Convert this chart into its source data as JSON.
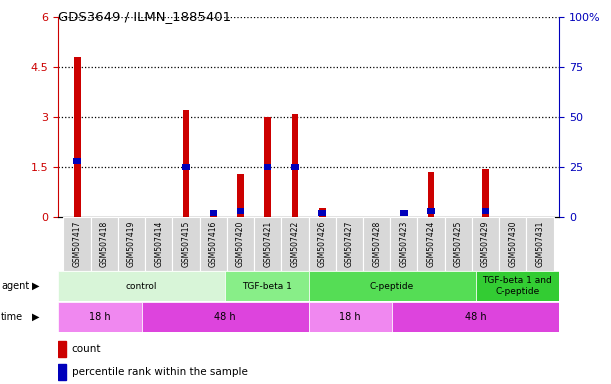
{
  "title": "GDS3649 / ILMN_1885401",
  "samples": [
    "GSM507417",
    "GSM507418",
    "GSM507419",
    "GSM507414",
    "GSM507415",
    "GSM507416",
    "GSM507420",
    "GSM507421",
    "GSM507422",
    "GSM507426",
    "GSM507427",
    "GSM507428",
    "GSM507423",
    "GSM507424",
    "GSM507425",
    "GSM507429",
    "GSM507430",
    "GSM507431"
  ],
  "count_values": [
    4.8,
    0.0,
    0.0,
    0.0,
    3.2,
    0.07,
    1.3,
    3.0,
    3.1,
    0.27,
    0.0,
    0.0,
    0.0,
    1.35,
    0.0,
    1.45,
    0.0,
    0.0
  ],
  "percentile_values_pct": [
    28,
    0,
    0,
    0,
    25,
    2,
    3,
    25,
    25,
    2,
    0,
    0,
    2,
    3,
    0,
    3,
    0,
    0
  ],
  "count_color": "#cc0000",
  "percentile_color": "#0000bb",
  "ylim_left": [
    0,
    6
  ],
  "ylim_right": [
    0,
    100
  ],
  "yticks_left": [
    0,
    1.5,
    3.0,
    4.5,
    6.0
  ],
  "yticks_right": [
    0,
    25,
    50,
    75,
    100
  ],
  "ytick_labels_left": [
    "0",
    "1.5",
    "3",
    "4.5",
    "6"
  ],
  "ytick_labels_right": [
    "0",
    "25",
    "50",
    "75",
    "100%"
  ],
  "agent_groups": [
    {
      "label": "control",
      "start": 0,
      "end": 6,
      "color": "#d8f5d8"
    },
    {
      "label": "TGF-beta 1",
      "start": 6,
      "end": 9,
      "color": "#88ee88"
    },
    {
      "label": "C-peptide",
      "start": 9,
      "end": 15,
      "color": "#55dd55"
    },
    {
      "label": "TGF-beta 1 and\nC-peptide",
      "start": 15,
      "end": 18,
      "color": "#33cc33"
    }
  ],
  "time_groups": [
    {
      "label": "18 h",
      "start": 0,
      "end": 3,
      "color": "#f088f0"
    },
    {
      "label": "48 h",
      "start": 3,
      "end": 9,
      "color": "#dd44dd"
    },
    {
      "label": "18 h",
      "start": 9,
      "end": 12,
      "color": "#f088f0"
    },
    {
      "label": "48 h",
      "start": 12,
      "end": 18,
      "color": "#dd44dd"
    }
  ],
  "background_color": "#ffffff",
  "left_axis_color": "#cc0000",
  "right_axis_color": "#0000bb"
}
